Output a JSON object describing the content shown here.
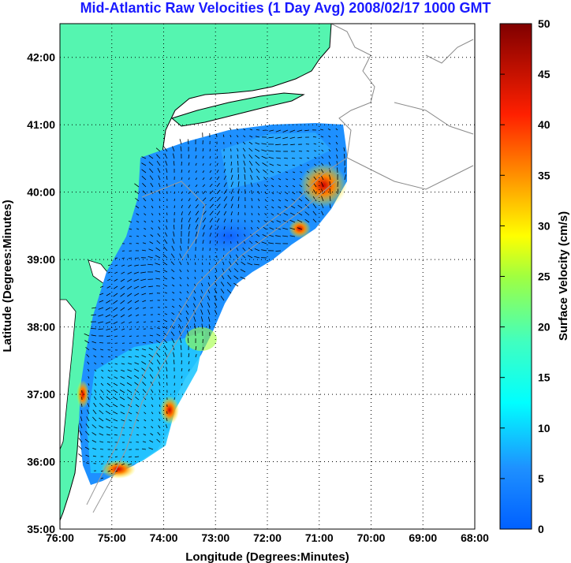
{
  "title": "Mid-Atlantic Raw Velocities (1 Day Avg) 2008/02/17 1000 GMT",
  "title_color": "#1a1aff",
  "map": {
    "x_axis_label": "Longitude (Degrees:Minutes)",
    "y_axis_label": "Latitude (Degrees:Minutes)",
    "lon_range": [
      -76,
      -68
    ],
    "lat_range": [
      35,
      42.5
    ],
    "x_ticks": [
      "76:00",
      "75:00",
      "74:00",
      "73:00",
      "72:00",
      "71:00",
      "70:00",
      "69:00",
      "68:00"
    ],
    "y_ticks": [
      "35:00",
      "36:00",
      "37:00",
      "38:00",
      "39:00",
      "40:00",
      "41:00",
      "42:00"
    ],
    "gridlines": "dotted",
    "land_color": "#55f5b0",
    "coast_color": "#000000",
    "bathymetry_color": "#9a9a9a"
  },
  "colorbar": {
    "label": "Surface Velocity (cm/s)",
    "range": [
      0,
      50
    ],
    "ticks": [
      "0",
      "5",
      "10",
      "15",
      "20",
      "25",
      "30",
      "35",
      "40",
      "45",
      "50"
    ],
    "colormap": "jet"
  }
}
